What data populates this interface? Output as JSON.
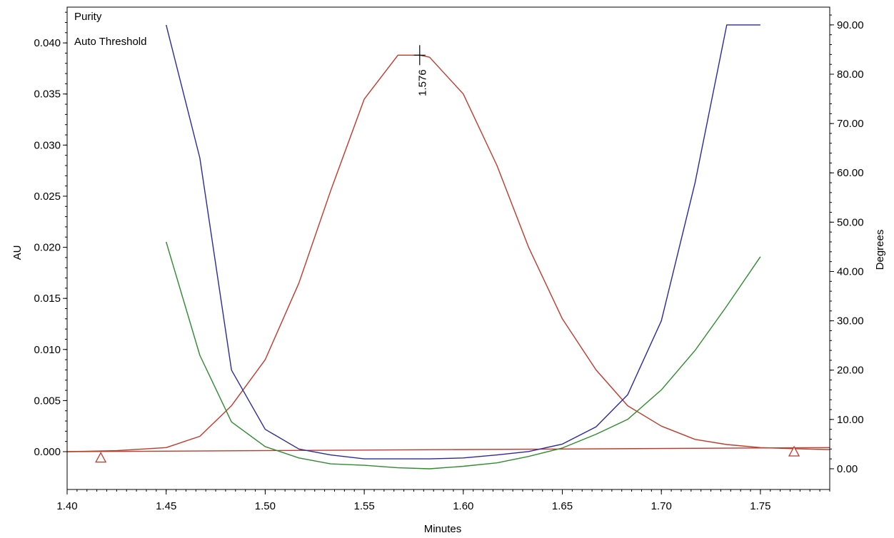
{
  "chart_data": {
    "type": "line",
    "xlabel": "Minutes",
    "ylabel": "AU",
    "y2label": "Degrees",
    "xlim": [
      1.4,
      1.785
    ],
    "ylim": [
      -0.0037,
      0.0435
    ],
    "y2lim": [
      -4.2,
      93.6
    ],
    "x_ticks": [
      "1.40",
      "1.45",
      "1.50",
      "1.55",
      "1.60",
      "1.65",
      "1.70",
      "1.75"
    ],
    "x_tick_values": [
      1.4,
      1.45,
      1.5,
      1.55,
      1.6,
      1.65,
      1.7,
      1.75
    ],
    "y_ticks": [
      "0.000",
      "0.005",
      "0.010",
      "0.015",
      "0.020",
      "0.025",
      "0.030",
      "0.035",
      "0.040"
    ],
    "y_tick_values": [
      0,
      0.005,
      0.01,
      0.015,
      0.02,
      0.025,
      0.03,
      0.035,
      0.04
    ],
    "y2_ticks": [
      "0.00",
      "10.00",
      "20.00",
      "30.00",
      "40.00",
      "50.00",
      "60.00",
      "70.00",
      "80.00",
      "90.00"
    ],
    "y2_tick_values": [
      0,
      10,
      20,
      30,
      40,
      50,
      60,
      70,
      80,
      90
    ],
    "grid": false,
    "legend_position": "top-left",
    "legend": [
      {
        "label": "Purity",
        "color": "#2e8b2e"
      },
      {
        "label": "Auto Threshold",
        "color": "#2a2a9c"
      }
    ],
    "peak_label": "1.576",
    "peak_x": 1.578,
    "series": [
      {
        "role": "chromatogram",
        "axis": "left",
        "color": "#c0392b",
        "x": [
          1.4,
          1.425,
          1.45,
          1.467,
          1.483,
          1.5,
          1.517,
          1.533,
          1.55,
          1.567,
          1.578,
          1.583,
          1.6,
          1.617,
          1.633,
          1.65,
          1.667,
          1.683,
          1.7,
          1.717,
          1.733,
          1.75,
          1.765,
          1.785
        ],
        "y": [
          0.0,
          0.0001,
          0.0004,
          0.0015,
          0.0045,
          0.009,
          0.0165,
          0.0255,
          0.0345,
          0.0388,
          0.0388,
          0.0386,
          0.035,
          0.028,
          0.02,
          0.013,
          0.008,
          0.0045,
          0.0025,
          0.0012,
          0.0007,
          0.0004,
          0.0003,
          0.0002
        ]
      },
      {
        "role": "baseline",
        "axis": "left",
        "color": "#c0392b",
        "x": [
          1.4,
          1.785
        ],
        "y": [
          0.0,
          0.0004
        ]
      },
      {
        "name": "Purity",
        "axis": "right",
        "color": "#2e8b2e",
        "x": [
          1.45,
          1.467,
          1.483,
          1.5,
          1.517,
          1.533,
          1.55,
          1.567,
          1.583,
          1.6,
          1.617,
          1.633,
          1.65,
          1.667,
          1.683,
          1.7,
          1.717,
          1.733,
          1.75
        ],
        "y": [
          46.0,
          23.0,
          9.5,
          4.5,
          2.2,
          1.0,
          0.7,
          0.2,
          0.0,
          0.5,
          1.2,
          2.5,
          4.2,
          7.0,
          10.0,
          16.0,
          24.0,
          33.0,
          43.0
        ]
      },
      {
        "name": "Auto Threshold",
        "axis": "right",
        "color": "#2a2a9c",
        "x": [
          1.45,
          1.467,
          1.483,
          1.5,
          1.517,
          1.533,
          1.55,
          1.567,
          1.583,
          1.6,
          1.617,
          1.633,
          1.65,
          1.667,
          1.683,
          1.7,
          1.717,
          1.733,
          1.75
        ],
        "y": [
          90.0,
          63.0,
          20.0,
          8.0,
          4.0,
          2.8,
          2.0,
          2.0,
          2.0,
          2.2,
          2.8,
          3.5,
          5.0,
          8.5,
          15.0,
          30.0,
          58.0,
          90.0,
          90.0
        ]
      }
    ],
    "markers": [
      {
        "type": "triangle",
        "x": 1.417,
        "y": -0.0006,
        "color": "#c0392b"
      },
      {
        "type": "triangle",
        "x": 1.767,
        "y": 0.0,
        "color": "#c0392b"
      }
    ]
  }
}
